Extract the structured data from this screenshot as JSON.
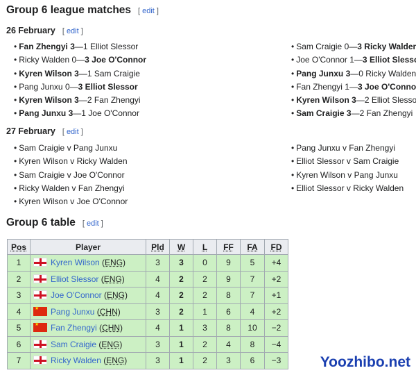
{
  "title": "Group 6 league matches",
  "edit": "edit",
  "days": [
    {
      "date": "26 February",
      "left": [
        {
          "p1": "Fan Zhengyi",
          "s1": "3",
          "s2": "1",
          "p2": "Elliot Slessor",
          "w": 1
        },
        {
          "p1": "Ricky Walden",
          "s1": "0",
          "s2": "3",
          "p2": "Joe O'Connor",
          "w": 2
        },
        {
          "p1": "Kyren Wilson",
          "s1": "3",
          "s2": "1",
          "p2": "Sam Craigie",
          "w": 1
        },
        {
          "p1": "Pang Junxu",
          "s1": "0",
          "s2": "3",
          "p2": "Elliot Slessor",
          "w": 2
        },
        {
          "p1": "Kyren Wilson",
          "s1": "3",
          "s2": "2",
          "p2": "Fan Zhengyi",
          "w": 1
        },
        {
          "p1": "Pang Junxu",
          "s1": "3",
          "s2": "1",
          "p2": "Joe O'Connor",
          "w": 1
        }
      ],
      "right": [
        {
          "p1": "Sam Craigie",
          "s1": "0",
          "s2": "3",
          "p2": "Ricky Walden",
          "w": 2
        },
        {
          "p1": "Joe O'Connor",
          "s1": "1",
          "s2": "3",
          "p2": "Elliot Slessor",
          "w": 2
        },
        {
          "p1": "Pang Junxu",
          "s1": "3",
          "s2": "0",
          "p2": "Ricky Walden",
          "w": 1
        },
        {
          "p1": "Fan Zhengyi",
          "s1": "1",
          "s2": "3",
          "p2": "Joe O'Connor",
          "w": 2
        },
        {
          "p1": "Kyren Wilson",
          "s1": "3",
          "s2": "2",
          "p2": "Elliot Slessor",
          "w": 1
        },
        {
          "p1": "Sam Craigie",
          "s1": "3",
          "s2": "2",
          "p2": "Fan Zhengyi",
          "w": 1
        }
      ]
    },
    {
      "date": "27 February",
      "left": [
        {
          "p1": "Sam Craigie",
          "v": "v",
          "p2": "Pang Junxu"
        },
        {
          "p1": "Kyren Wilson",
          "v": "v",
          "p2": "Ricky Walden"
        },
        {
          "p1": "Sam Craigie",
          "v": "v",
          "p2": "Joe O'Connor"
        },
        {
          "p1": "Ricky Walden",
          "v": "v",
          "p2": "Fan Zhengyi"
        },
        {
          "p1": "Kyren Wilson",
          "v": "v",
          "p2": "Joe O'Connor"
        }
      ],
      "right": [
        {
          "p1": "Pang Junxu",
          "v": "v",
          "p2": "Fan Zhengyi"
        },
        {
          "p1": "Elliot Slessor",
          "v": "v",
          "p2": "Sam Craigie"
        },
        {
          "p1": "Kyren Wilson",
          "v": "v",
          "p2": "Pang Junxu"
        },
        {
          "p1": "Elliot Slessor",
          "v": "v",
          "p2": "Ricky Walden"
        }
      ]
    }
  ],
  "table_title": "Group 6 table",
  "headers": [
    "Pos",
    "Player",
    "Pld",
    "W",
    "L",
    "FF",
    "FA",
    "FD"
  ],
  "rows": [
    {
      "pos": "1",
      "player": "Kyren Wilson",
      "cc": "ENG",
      "pld": "3",
      "w": "3",
      "l": "0",
      "ff": "9",
      "fa": "5",
      "fd": "+4"
    },
    {
      "pos": "2",
      "player": "Elliot Slessor",
      "cc": "ENG",
      "pld": "4",
      "w": "2",
      "l": "2",
      "ff": "9",
      "fa": "7",
      "fd": "+2"
    },
    {
      "pos": "3",
      "player": "Joe O'Connor",
      "cc": "ENG",
      "pld": "4",
      "w": "2",
      "l": "2",
      "ff": "8",
      "fa": "7",
      "fd": "+1"
    },
    {
      "pos": "4",
      "player": "Pang Junxu",
      "cc": "CHN",
      "pld": "3",
      "w": "2",
      "l": "1",
      "ff": "6",
      "fa": "4",
      "fd": "+2"
    },
    {
      "pos": "5",
      "player": "Fan Zhengyi",
      "cc": "CHN",
      "pld": "4",
      "w": "1",
      "l": "3",
      "ff": "8",
      "fa": "10",
      "fd": "−2"
    },
    {
      "pos": "6",
      "player": "Sam Craigie",
      "cc": "ENG",
      "pld": "3",
      "w": "1",
      "l": "2",
      "ff": "4",
      "fa": "8",
      "fd": "−4"
    },
    {
      "pos": "7",
      "player": "Ricky Walden",
      "cc": "ENG",
      "pld": "3",
      "w": "1",
      "l": "2",
      "ff": "3",
      "fa": "6",
      "fd": "−3"
    }
  ],
  "watermark": "Yoozhibo.net"
}
